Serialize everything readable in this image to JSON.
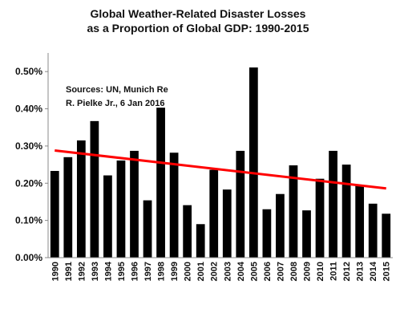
{
  "chart_data": {
    "type": "bar",
    "title_line1": "Global Weather-Related Disaster Losses",
    "title_line2": "as a Proportion of Global GDP: 1990-2015",
    "xlabel": "",
    "ylabel": "",
    "ylim": [
      0,
      0.55
    ],
    "y_tick_values": [
      0,
      0.1,
      0.2,
      0.3,
      0.4,
      0.5
    ],
    "y_tick_labels": [
      "0.00%",
      "0.10%",
      "0.20%",
      "0.30%",
      "0.40%",
      "0.50%"
    ],
    "grid": false,
    "categories": [
      "1990",
      "1991",
      "1992",
      "1993",
      "1994",
      "1995",
      "1996",
      "1997",
      "1998",
      "1999",
      "2000",
      "2001",
      "2002",
      "2003",
      "2004",
      "2005",
      "2006",
      "2007",
      "2008",
      "2009",
      "2010",
      "2011",
      "2012",
      "2013",
      "2014",
      "2015"
    ],
    "values": [
      0.233,
      0.27,
      0.315,
      0.367,
      0.221,
      0.261,
      0.287,
      0.154,
      0.403,
      0.282,
      0.141,
      0.09,
      0.236,
      0.183,
      0.287,
      0.511,
      0.13,
      0.171,
      0.248,
      0.127,
      0.212,
      0.287,
      0.25,
      0.196,
      0.145,
      0.118
    ],
    "bar_color": "#000000",
    "trendline": {
      "start": 0.288,
      "end": 0.186,
      "color": "#ff0000"
    },
    "annotation_line1": "Sources: UN, Munich Re",
    "annotation_line2": "R. Pielke Jr., 6 Jan 2016"
  }
}
